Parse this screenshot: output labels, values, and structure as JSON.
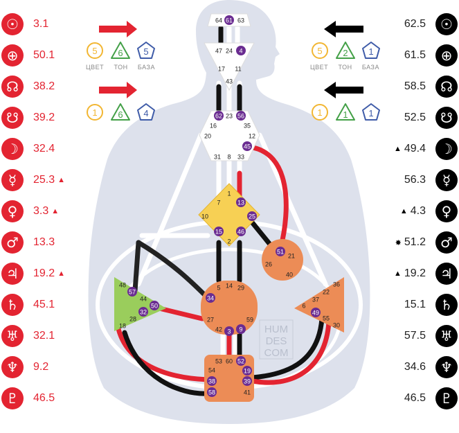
{
  "design_side": {
    "planets": [
      {
        "icon": "sun-icon",
        "glyph": "☉",
        "value": "3.1",
        "mark": ""
      },
      {
        "icon": "earth-icon",
        "glyph": "⊕",
        "value": "50.1",
        "mark": ""
      },
      {
        "icon": "north-node-icon",
        "glyph": "☊",
        "value": "38.2",
        "mark": ""
      },
      {
        "icon": "south-node-icon",
        "glyph": "☋",
        "value": "39.2",
        "mark": ""
      },
      {
        "icon": "moon-icon",
        "glyph": "☽",
        "value": "32.4",
        "mark": ""
      },
      {
        "icon": "mercury-icon",
        "glyph": "☿",
        "value": "25.3",
        "mark": "▲"
      },
      {
        "icon": "venus-icon",
        "glyph": "♀",
        "value": "3.3",
        "mark": "▲"
      },
      {
        "icon": "mars-icon",
        "glyph": "♂",
        "value": "13.3",
        "mark": ""
      },
      {
        "icon": "jupiter-icon",
        "glyph": "♃",
        "value": "19.2",
        "mark": "▲"
      },
      {
        "icon": "saturn-icon",
        "glyph": "♄",
        "value": "45.1",
        "mark": ""
      },
      {
        "icon": "uranus-icon",
        "glyph": "♅",
        "value": "32.1",
        "mark": ""
      },
      {
        "icon": "neptune-icon",
        "glyph": "♆",
        "value": "9.2",
        "mark": ""
      },
      {
        "icon": "pluto-icon",
        "glyph": "♇",
        "value": "46.5",
        "mark": ""
      }
    ],
    "variables_top": {
      "color": "5",
      "tone": "6",
      "base": "5"
    },
    "variables_bottom": {
      "color": "1",
      "tone": "6",
      "base": "4"
    }
  },
  "personality_side": {
    "planets": [
      {
        "icon": "sun-icon",
        "glyph": "☉",
        "value": "62.5",
        "mark": ""
      },
      {
        "icon": "earth-icon",
        "glyph": "⊕",
        "value": "61.5",
        "mark": ""
      },
      {
        "icon": "north-node-icon",
        "glyph": "☊",
        "value": "58.5",
        "mark": ""
      },
      {
        "icon": "south-node-icon",
        "glyph": "☋",
        "value": "52.5",
        "mark": ""
      },
      {
        "icon": "moon-icon",
        "glyph": "☽",
        "value": "49.4",
        "mark": "▲"
      },
      {
        "icon": "mercury-icon",
        "glyph": "☿",
        "value": "56.3",
        "mark": ""
      },
      {
        "icon": "venus-icon",
        "glyph": "♀",
        "value": "4.3",
        "mark": "▲"
      },
      {
        "icon": "mars-icon",
        "glyph": "♂",
        "value": "51.2",
        "mark": "✸"
      },
      {
        "icon": "jupiter-icon",
        "glyph": "♃",
        "value": "19.2",
        "mark": "▲"
      },
      {
        "icon": "saturn-icon",
        "glyph": "♄",
        "value": "15.1",
        "mark": ""
      },
      {
        "icon": "uranus-icon",
        "glyph": "♅",
        "value": "57.5",
        "mark": ""
      },
      {
        "icon": "neptune-icon",
        "glyph": "♆",
        "value": "34.6",
        "mark": ""
      },
      {
        "icon": "pluto-icon",
        "glyph": "♇",
        "value": "46.5",
        "mark": ""
      }
    ],
    "variables_top": {
      "color": "5",
      "tone": "2",
      "base": "1"
    },
    "variables_bottom": {
      "color": "1",
      "tone": "1",
      "base": "1"
    }
  },
  "variable_labels": {
    "color": "ЦВЕТ",
    "tone": "ТОН",
    "base": "БАЗА"
  },
  "watermark": [
    "HUM",
    "DES",
    "COM"
  ],
  "colors": {
    "design": "#e32431",
    "personality": "#000000",
    "gate_badge": "#6a2c91",
    "center_orange": "#ec8c56",
    "center_yellow": "#f7d054",
    "center_green": "#9acd5c",
    "body": "#dde1ec"
  },
  "centers": {
    "head": {
      "gates": [
        "64",
        "61",
        "63"
      ]
    },
    "ajna": {
      "gates": [
        "47",
        "24",
        "4",
        "17",
        "11",
        "43"
      ]
    },
    "throat": {
      "gates": [
        "62",
        "23",
        "56",
        "16",
        "35",
        "20",
        "12",
        "45",
        "31",
        "8",
        "33"
      ]
    },
    "g": {
      "gates": [
        "7",
        "1",
        "13",
        "10",
        "25",
        "15",
        "46",
        "2"
      ]
    },
    "heart": {
      "gates": [
        "51",
        "21",
        "26",
        "40"
      ]
    },
    "spleen": {
      "gates": [
        "48",
        "57",
        "44",
        "50",
        "32",
        "28",
        "18"
      ]
    },
    "sacral": {
      "gates": [
        "5",
        "14",
        "29",
        "34",
        "27",
        "59",
        "42",
        "3",
        "9"
      ]
    },
    "solar_plexus": {
      "gates": [
        "36",
        "22",
        "37",
        "6",
        "49",
        "55",
        "30"
      ]
    },
    "root": {
      "gates": [
        "53",
        "60",
        "52",
        "54",
        "19",
        "38",
        "39",
        "58",
        "41"
      ]
    }
  }
}
